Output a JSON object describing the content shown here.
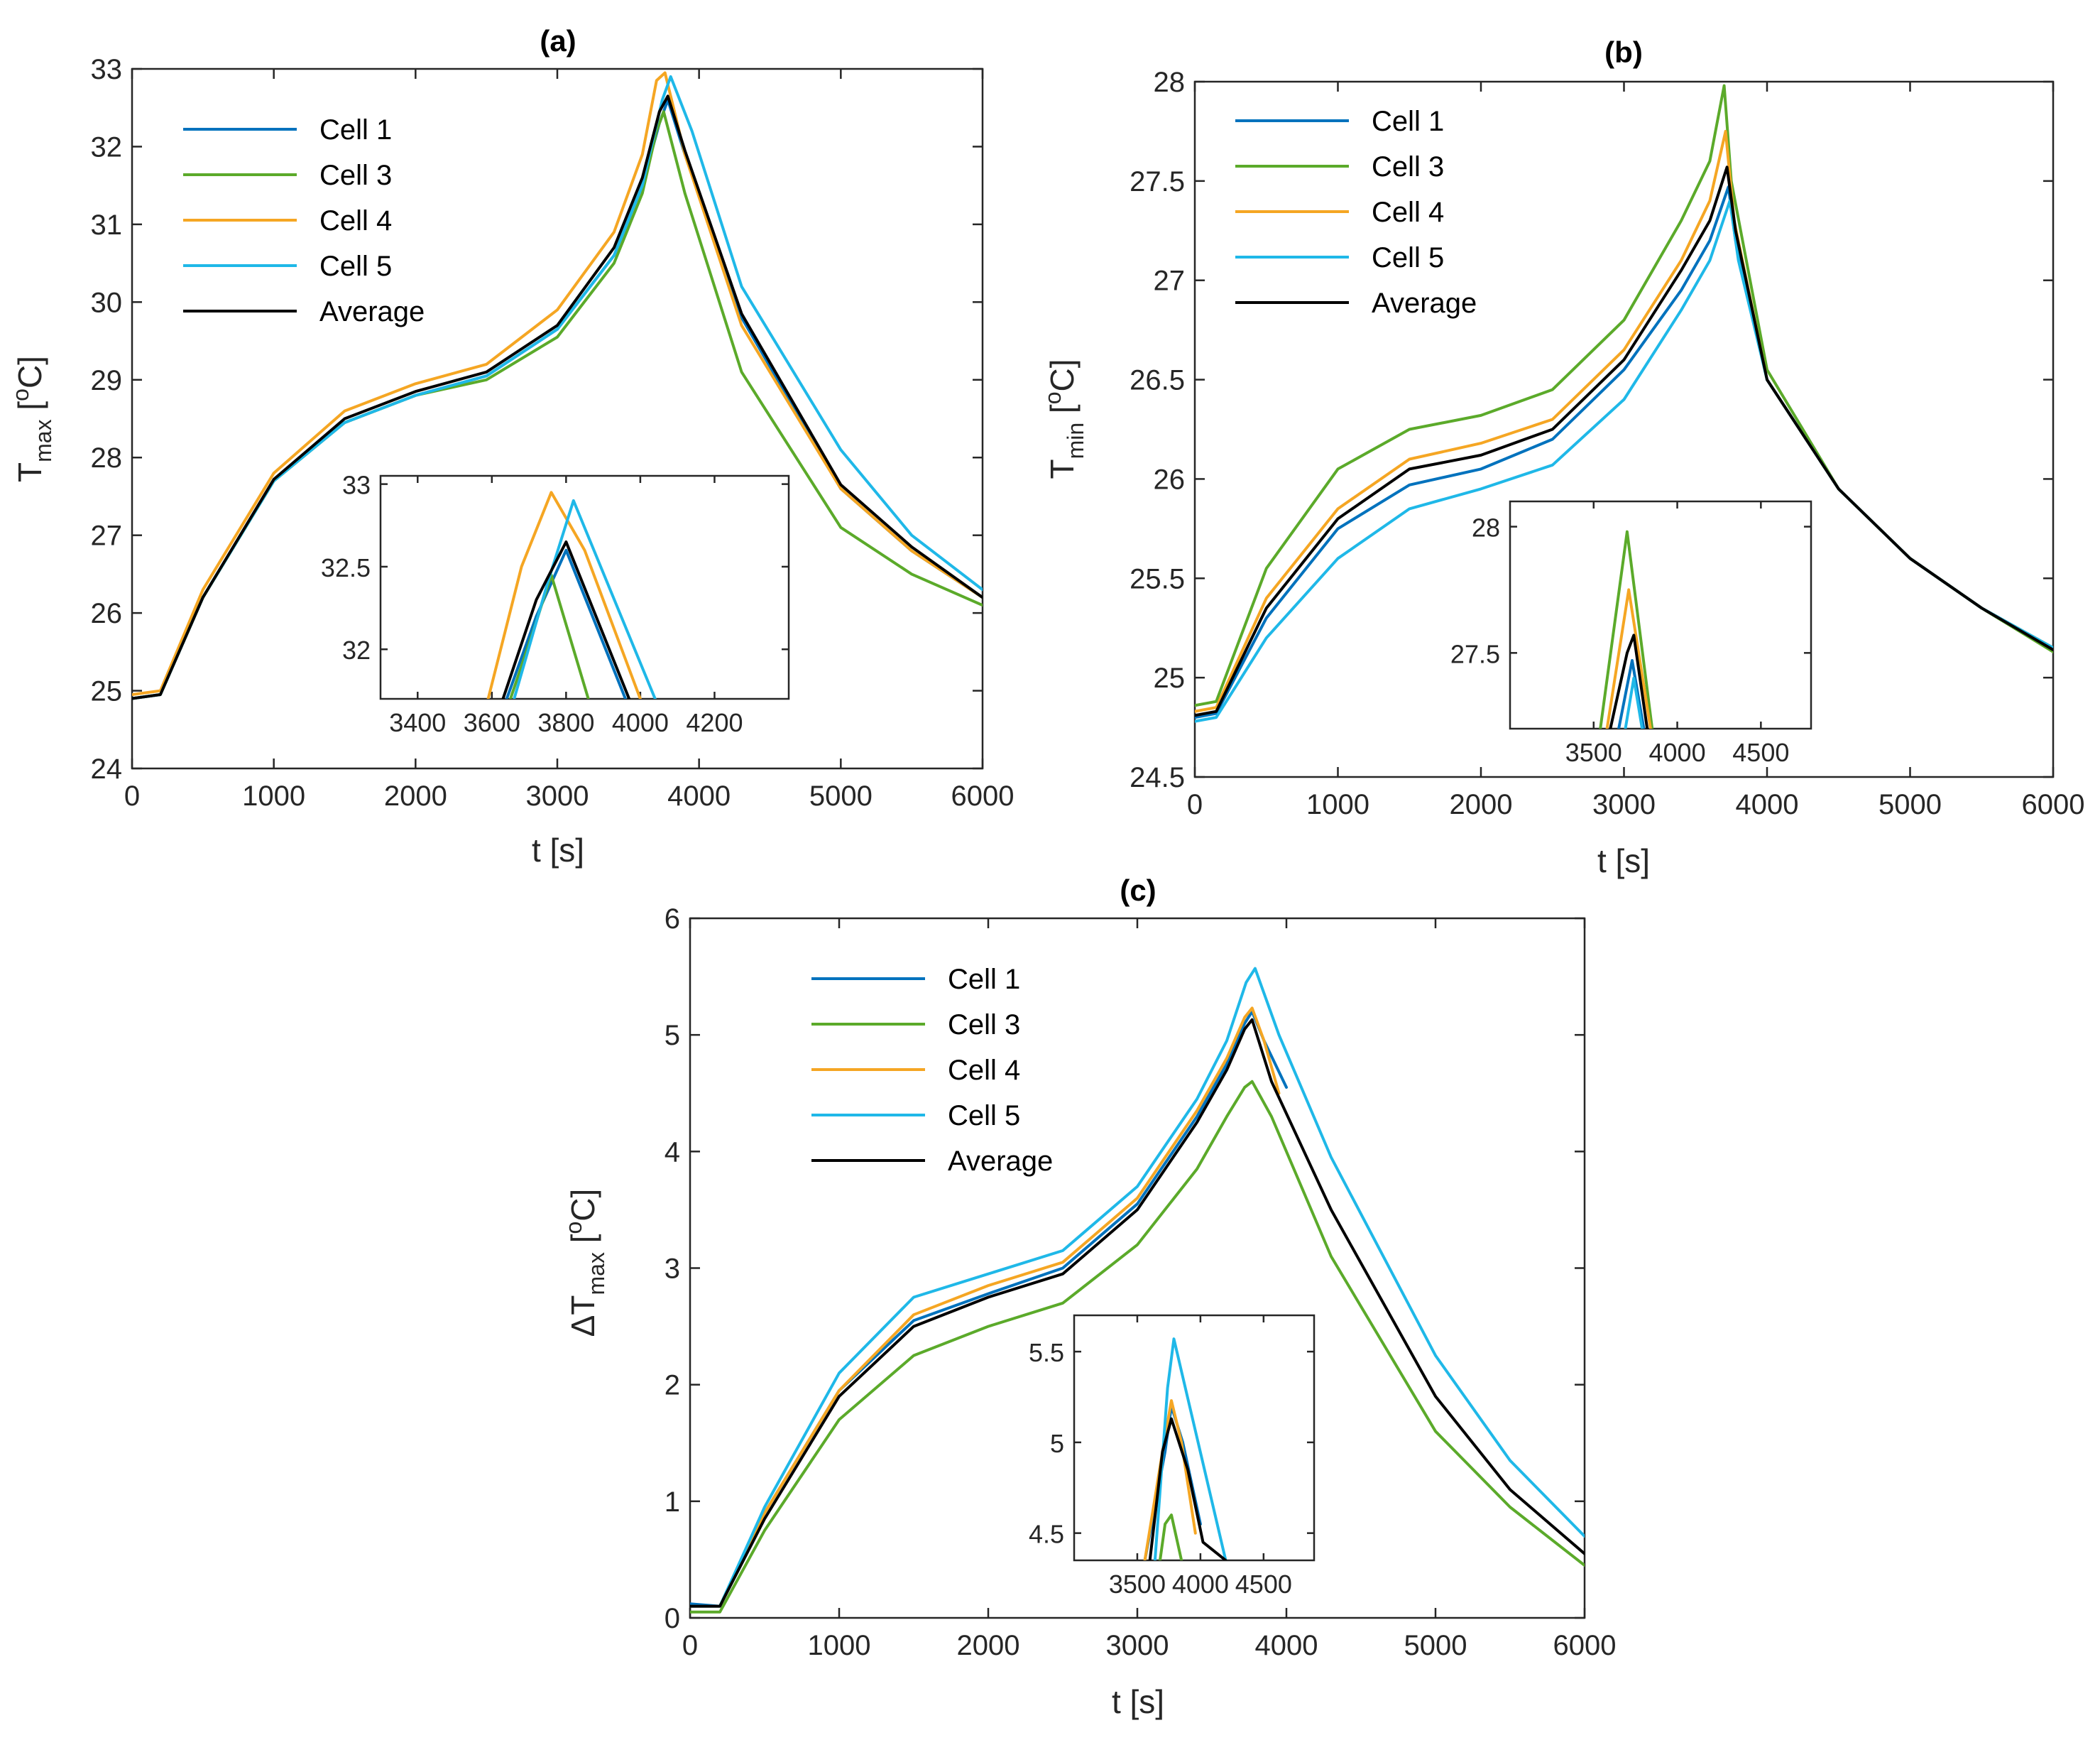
{
  "chart_data": [
    {
      "type": "line",
      "title": "(a)",
      "xlabel": "t [s]",
      "ylabel": {
        "base": "T",
        "sub": "max",
        "unit_open": " [",
        "sup": "o",
        "unit_close": "C]"
      },
      "xlim": [
        0,
        6000
      ],
      "ylim": [
        24,
        33
      ],
      "xticks": [
        0,
        1000,
        2000,
        3000,
        4000,
        5000,
        6000
      ],
      "yticks": [
        24,
        25,
        26,
        27,
        28,
        29,
        30,
        31,
        32,
        33
      ],
      "legend": [
        "Cell 1",
        "Cell 3",
        "Cell 4",
        "Cell 5",
        "Average"
      ],
      "series": [
        {
          "name": "Cell 1",
          "color": "#0072BD",
          "x": [
            0,
            200,
            500,
            1000,
            1500,
            2000,
            2500,
            3000,
            3400,
            3600,
            3720,
            3780,
            3900,
            4300,
            5000,
            5500,
            6000
          ],
          "y": [
            24.9,
            24.95,
            26.2,
            27.7,
            28.45,
            28.8,
            29.05,
            29.65,
            30.6,
            31.5,
            32.3,
            32.6,
            31.9,
            29.8,
            27.6,
            26.8,
            26.2
          ]
        },
        {
          "name": "Cell 3",
          "color": "#5BAA2A",
          "x": [
            0,
            200,
            500,
            1000,
            1500,
            2000,
            2500,
            3000,
            3400,
            3600,
            3700,
            3750,
            3900,
            4300,
            5000,
            5500,
            6000
          ],
          "y": [
            24.9,
            24.95,
            26.2,
            27.7,
            28.45,
            28.8,
            29.0,
            29.55,
            30.5,
            31.4,
            32.2,
            32.45,
            31.4,
            29.1,
            27.1,
            26.5,
            26.1
          ]
        },
        {
          "name": "Cell 4",
          "color": "#F5A623",
          "x": [
            0,
            200,
            500,
            1000,
            1500,
            2000,
            2500,
            3000,
            3400,
            3600,
            3700,
            3760,
            3900,
            4300,
            5000,
            5500,
            6000
          ],
          "y": [
            24.95,
            25.0,
            26.3,
            27.8,
            28.6,
            28.95,
            29.2,
            29.9,
            30.9,
            31.9,
            32.85,
            32.95,
            31.9,
            29.7,
            27.6,
            26.8,
            26.2
          ]
        },
        {
          "name": "Cell 5",
          "color": "#1FB8E8",
          "x": [
            0,
            200,
            500,
            1000,
            1500,
            2000,
            2500,
            3000,
            3400,
            3600,
            3740,
            3800,
            3950,
            4300,
            5000,
            5500,
            6000
          ],
          "y": [
            24.9,
            24.95,
            26.2,
            27.7,
            28.45,
            28.8,
            29.05,
            29.65,
            30.6,
            31.5,
            32.6,
            32.9,
            32.2,
            30.2,
            28.1,
            27.0,
            26.3
          ]
        },
        {
          "name": "Average",
          "color": "#000000",
          "x": [
            0,
            200,
            500,
            1000,
            1500,
            2000,
            2500,
            3000,
            3400,
            3600,
            3720,
            3780,
            3900,
            4300,
            5000,
            5500,
            6000
          ],
          "y": [
            24.9,
            24.95,
            26.2,
            27.72,
            28.5,
            28.85,
            29.1,
            29.7,
            30.7,
            31.6,
            32.45,
            32.65,
            31.95,
            29.85,
            27.65,
            26.85,
            26.2
          ]
        }
      ],
      "inset": {
        "xlim": [
          3300,
          4400
        ],
        "ylim": [
          31.7,
          33.05
        ],
        "xticks": [
          3400,
          3600,
          3800,
          4000,
          4200
        ],
        "yticks": [
          32,
          32.5,
          33
        ],
        "series": [
          {
            "name": "Cell 1",
            "color": "#0072BD",
            "x": [
              3640,
              3720,
              3800,
              3960
            ],
            "y": [
              31.7,
              32.2,
              32.6,
              31.7
            ]
          },
          {
            "name": "Cell 3",
            "color": "#5BAA2A",
            "x": [
              3650,
              3710,
              3760,
              3860
            ],
            "y": [
              31.7,
              32.1,
              32.45,
              31.7
            ]
          },
          {
            "name": "Cell 4",
            "color": "#F5A623",
            "x": [
              3590,
              3680,
              3760,
              3850,
              4000
            ],
            "y": [
              31.7,
              32.5,
              32.95,
              32.6,
              31.7
            ]
          },
          {
            "name": "Cell 5",
            "color": "#1FB8E8",
            "x": [
              3660,
              3750,
              3820,
              4040
            ],
            "y": [
              31.7,
              32.4,
              32.9,
              31.7
            ]
          },
          {
            "name": "Average",
            "color": "#000000",
            "x": [
              3630,
              3720,
              3800,
              3970
            ],
            "y": [
              31.7,
              32.3,
              32.65,
              31.7
            ]
          }
        ]
      }
    },
    {
      "type": "line",
      "title": "(b)",
      "xlabel": "t [s]",
      "ylabel": {
        "base": "T",
        "sub": "min",
        "unit_open": " [",
        "sup": "o",
        "unit_close": "C]"
      },
      "xlim": [
        0,
        6000
      ],
      "ylim": [
        24.5,
        28
      ],
      "xticks": [
        0,
        1000,
        2000,
        3000,
        4000,
        5000,
        6000
      ],
      "yticks": [
        24.5,
        25,
        25.5,
        26,
        26.5,
        27,
        27.5,
        28
      ],
      "legend": [
        "Cell 1",
        "Cell 3",
        "Cell 4",
        "Cell 5",
        "Average"
      ],
      "series": [
        {
          "name": "Cell 1",
          "color": "#0072BD",
          "x": [
            0,
            150,
            500,
            1000,
            1500,
            2000,
            2500,
            3000,
            3400,
            3600,
            3730,
            3780,
            4000,
            4500,
            5000,
            5500,
            6000
          ],
          "y": [
            24.8,
            24.82,
            25.3,
            25.75,
            25.97,
            26.05,
            26.2,
            26.55,
            26.95,
            27.2,
            27.47,
            27.2,
            26.5,
            25.95,
            25.6,
            25.35,
            25.15
          ]
        },
        {
          "name": "Cell 3",
          "color": "#5BAA2A",
          "x": [
            0,
            150,
            500,
            1000,
            1500,
            2000,
            2500,
            3000,
            3400,
            3600,
            3700,
            3750,
            4000,
            4500,
            5000,
            5500,
            6000
          ],
          "y": [
            24.86,
            24.88,
            25.55,
            26.05,
            26.25,
            26.32,
            26.45,
            26.8,
            27.3,
            27.6,
            27.98,
            27.5,
            26.55,
            25.95,
            25.6,
            25.35,
            25.13
          ]
        },
        {
          "name": "Cell 4",
          "color": "#F5A623",
          "x": [
            0,
            150,
            500,
            1000,
            1500,
            2000,
            2500,
            3000,
            3400,
            3600,
            3710,
            3770,
            4000,
            4500,
            5000,
            5500,
            6000
          ],
          "y": [
            24.83,
            24.85,
            25.4,
            25.85,
            26.1,
            26.18,
            26.3,
            26.65,
            27.1,
            27.4,
            27.75,
            27.3,
            26.5,
            25.95,
            25.6,
            25.35,
            25.15
          ]
        },
        {
          "name": "Cell 5",
          "color": "#1FB8E8",
          "x": [
            0,
            150,
            500,
            1000,
            1500,
            2000,
            2500,
            3000,
            3400,
            3600,
            3740,
            3800,
            4000,
            4500,
            5000,
            5500,
            6000
          ],
          "y": [
            24.78,
            24.8,
            25.2,
            25.6,
            25.85,
            25.95,
            26.07,
            26.4,
            26.85,
            27.1,
            27.4,
            27.1,
            26.5,
            25.95,
            25.6,
            25.35,
            25.15
          ]
        },
        {
          "name": "Average",
          "color": "#000000",
          "x": [
            0,
            150,
            500,
            1000,
            1500,
            2000,
            2500,
            3000,
            3400,
            3600,
            3720,
            3780,
            4000,
            4500,
            5000,
            5500,
            6000
          ],
          "y": [
            24.81,
            24.83,
            25.35,
            25.8,
            26.05,
            26.12,
            26.25,
            26.6,
            27.05,
            27.3,
            27.57,
            27.25,
            26.5,
            25.95,
            25.6,
            25.35,
            25.14
          ]
        }
      ],
      "inset": {
        "xlim": [
          3000,
          4800
        ],
        "ylim": [
          27.2,
          28.1
        ],
        "xticks": [
          3500,
          4000,
          4500
        ],
        "yticks": [
          27.5,
          28
        ],
        "series": [
          {
            "name": "Cell 1",
            "color": "#0072BD",
            "x": [
              3650,
              3730,
              3800
            ],
            "y": [
              27.2,
              27.47,
              27.2
            ]
          },
          {
            "name": "Cell 3",
            "color": "#5BAA2A",
            "x": [
              3540,
              3700,
              3850
            ],
            "y": [
              27.2,
              27.98,
              27.2
            ]
          },
          {
            "name": "Cell 4",
            "color": "#F5A623",
            "x": [
              3580,
              3710,
              3840
            ],
            "y": [
              27.2,
              27.75,
              27.2
            ]
          },
          {
            "name": "Cell 5",
            "color": "#1FB8E8",
            "x": [
              3690,
              3740,
              3790
            ],
            "y": [
              27.2,
              27.4,
              27.2
            ]
          },
          {
            "name": "Average",
            "color": "#000000",
            "x": [
              3600,
              3700,
              3740,
              3820
            ],
            "y": [
              27.2,
              27.5,
              27.57,
              27.2
            ]
          }
        ]
      }
    },
    {
      "type": "line",
      "title": "(c)",
      "xlabel": "t [s]",
      "ylabel": {
        "base": "ΔT",
        "sub": "max",
        "unit_open": " [",
        "sup": "o",
        "unit_close": "C]"
      },
      "xlim": [
        0,
        6000
      ],
      "ylim": [
        0,
        6
      ],
      "xticks": [
        0,
        1000,
        2000,
        3000,
        4000,
        5000,
        6000
      ],
      "yticks": [
        0,
        1,
        2,
        3,
        4,
        5,
        6
      ],
      "legend": [
        "Cell 1",
        "Cell 3",
        "Cell 4",
        "Cell 5",
        "Average"
      ],
      "series": [
        {
          "name": "Cell 1",
          "color": "#0072BD",
          "x": [
            0,
            200,
            500,
            1000,
            1500,
            2000,
            2500,
            3000,
            3400,
            3600,
            3720,
            3770,
            3850,
            4000
          ],
          "y": [
            0.12,
            0.1,
            0.9,
            1.95,
            2.55,
            2.78,
            3.0,
            3.55,
            4.3,
            4.75,
            5.1,
            5.2,
            4.95,
            4.55
          ]
        },
        {
          "name": "Cell 3",
          "color": "#5BAA2A",
          "x": [
            0,
            200,
            500,
            1000,
            1500,
            2000,
            2500,
            3000,
            3400,
            3600,
            3720,
            3770,
            3900,
            4300,
            5000,
            5500,
            6000
          ],
          "y": [
            0.05,
            0.05,
            0.75,
            1.7,
            2.25,
            2.5,
            2.7,
            3.2,
            3.85,
            4.3,
            4.55,
            4.6,
            4.3,
            3.1,
            1.6,
            0.95,
            0.45
          ]
        },
        {
          "name": "Cell 4",
          "color": "#F5A623",
          "x": [
            0,
            200,
            500,
            1000,
            1500,
            2000,
            2500,
            3000,
            3400,
            3600,
            3720,
            3770,
            3850,
            3950
          ],
          "y": [
            0.1,
            0.1,
            0.9,
            1.95,
            2.6,
            2.85,
            3.05,
            3.6,
            4.35,
            4.8,
            5.15,
            5.23,
            4.95,
            4.5
          ]
        },
        {
          "name": "Cell 5",
          "color": "#1FB8E8",
          "x": [
            0,
            200,
            500,
            1000,
            1500,
            2000,
            2500,
            3000,
            3400,
            3600,
            3730,
            3790,
            3950,
            4300,
            5000,
            5500,
            6000
          ],
          "y": [
            0.1,
            0.1,
            0.95,
            2.1,
            2.75,
            2.95,
            3.15,
            3.7,
            4.45,
            4.95,
            5.45,
            5.57,
            5.0,
            3.95,
            2.25,
            1.35,
            0.7
          ]
        },
        {
          "name": "Average",
          "color": "#000000",
          "x": [
            0,
            200,
            500,
            1000,
            1500,
            2000,
            2500,
            3000,
            3400,
            3600,
            3720,
            3770,
            3900,
            4300,
            5000,
            5500,
            6000
          ],
          "y": [
            0.1,
            0.1,
            0.85,
            1.9,
            2.5,
            2.75,
            2.95,
            3.5,
            4.25,
            4.7,
            5.05,
            5.13,
            4.6,
            3.5,
            1.9,
            1.1,
            0.55
          ]
        }
      ],
      "inset": {
        "xlim": [
          3000,
          4900
        ],
        "ylim": [
          4.35,
          5.7
        ],
        "xticks": [
          3500,
          4000,
          4500
        ],
        "yticks": [
          4.5,
          5,
          5.5
        ],
        "series": [
          {
            "name": "Cell 1",
            "color": "#0072BD",
            "x": [
              3560,
              3720,
              3770,
              3860,
              4000
            ],
            "y": [
              4.35,
              4.95,
              5.2,
              5.0,
              4.55
            ]
          },
          {
            "name": "Cell 3",
            "color": "#5BAA2A",
            "x": [
              3680,
              3720,
              3770,
              3850
            ],
            "y": [
              4.35,
              4.55,
              4.6,
              4.35
            ]
          },
          {
            "name": "Cell 4",
            "color": "#F5A623",
            "x": [
              3560,
              3700,
              3770,
              3850,
              3960
            ],
            "y": [
              4.35,
              4.95,
              5.23,
              5.0,
              4.5
            ]
          },
          {
            "name": "Cell 5",
            "color": "#1FB8E8",
            "x": [
              3640,
              3740,
              3790,
              4200
            ],
            "y": [
              4.35,
              5.3,
              5.57,
              4.35
            ]
          },
          {
            "name": "Average",
            "color": "#000000",
            "x": [
              3600,
              3700,
              3770,
              3900,
              4020,
              4200
            ],
            "y": [
              4.35,
              4.95,
              5.13,
              4.85,
              4.45,
              4.35
            ]
          }
        ]
      }
    }
  ]
}
